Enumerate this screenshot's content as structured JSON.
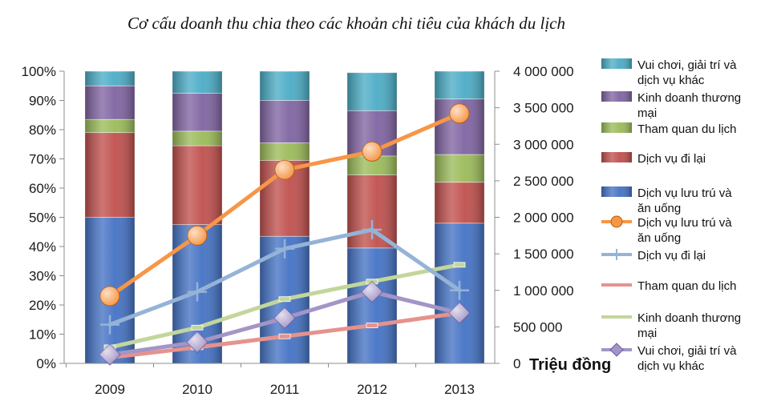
{
  "chart_data": {
    "type": "bar",
    "title": "Cơ cấu doanh thu chia theo các khoản chi tiêu của khách du lịch",
    "categories": [
      "2009",
      "2010",
      "2011",
      "2012",
      "2013"
    ],
    "stacked": true,
    "left_axis": {
      "min": 0,
      "max": 100,
      "step": 10,
      "tick_labels": [
        "0%",
        "10%",
        "20%",
        "30%",
        "40%",
        "50%",
        "60%",
        "70%",
        "80%",
        "90%",
        "100%"
      ]
    },
    "right_axis": {
      "min": 0,
      "max": 4000000,
      "step": 500000,
      "tick_labels": [
        "0",
        "500 000",
        "1 000 000",
        "1 500 000",
        "2 000 000",
        "2 500 000",
        "3 000 000",
        "3 500 000",
        "4 000 000"
      ],
      "unit_label": "Triệu đồng"
    },
    "bar_series": [
      {
        "name": "Dịch vụ lưu trú và ăn uống",
        "values": [
          50,
          47.5,
          43.5,
          39.5,
          48
        ],
        "color": "#4472C4"
      },
      {
        "name": "Dịch vụ đi lại",
        "values": [
          29,
          27,
          26,
          25,
          14
        ],
        "color": "#C0504D"
      },
      {
        "name": "Tham quan du lịch",
        "values": [
          4.5,
          5,
          6,
          6.5,
          9.5
        ],
        "color": "#9BBB59"
      },
      {
        "name": "Kinh doanh thương mại",
        "values": [
          11.5,
          13,
          14.5,
          15.5,
          19
        ],
        "color": "#8064A2"
      },
      {
        "name": "Vui chơi, giải trí và dịch vụ khác",
        "values": [
          5,
          7.5,
          10,
          13,
          9.5
        ],
        "color": "#4BACC6"
      }
    ],
    "line_series": [
      {
        "name": "Dịch vụ lưu trú và ăn uống",
        "values": [
          920000,
          1750000,
          2650000,
          2900000,
          3420000
        ],
        "color": "#F79646",
        "marker": "circle"
      },
      {
        "name": "Dịch vụ đi lại",
        "values": [
          530000,
          980000,
          1570000,
          1830000,
          1000000
        ],
        "color": "#95B3D7",
        "marker": "plus"
      },
      {
        "name": "Tham quan du lịch",
        "values": [
          80000,
          220000,
          370000,
          520000,
          690000
        ],
        "color": "#E6928D",
        "marker": "none"
      },
      {
        "name": "Kinh doanh thương mại",
        "values": [
          220000,
          490000,
          880000,
          1120000,
          1350000
        ],
        "color": "#C3D69B",
        "marker": "none"
      },
      {
        "name": "Vui chơi, giải trí và dịch vụ khác",
        "values": [
          120000,
          290000,
          620000,
          980000,
          690000
        ],
        "color": "#A395C6",
        "marker": "diamond"
      }
    ],
    "legend": {
      "placement": "right",
      "entries": [
        {
          "kind": "bar",
          "series": 4,
          "lines": [
            "Vui chơi, giải trí và",
            "dịch vụ khác"
          ]
        },
        {
          "kind": "bar",
          "series": 3,
          "lines": [
            "Kinh doanh thương",
            "mại"
          ]
        },
        {
          "kind": "bar",
          "series": 2,
          "lines": [
            "Tham quan du lịch"
          ]
        },
        {
          "kind": "bar",
          "series": 1,
          "lines": [
            "Dịch vụ đi lại"
          ]
        },
        {
          "kind": "bar",
          "series": 0,
          "lines": [
            "Dịch vụ lưu trú và",
            "ăn uống"
          ]
        },
        {
          "kind": "line",
          "series": 0,
          "lines": [
            "Dịch vụ lưu trú và",
            "ăn uống"
          ]
        },
        {
          "kind": "line",
          "series": 1,
          "lines": [
            "Dịch vụ đi lại"
          ]
        },
        {
          "kind": "line",
          "series": 2,
          "lines": [
            "Tham quan du lịch"
          ]
        },
        {
          "kind": "line",
          "series": 3,
          "lines": [
            "Kinh doanh thương",
            "mại"
          ]
        },
        {
          "kind": "line",
          "series": 4,
          "lines": [
            "Vui chơi, giải trí và",
            "dịch vụ khác"
          ]
        }
      ]
    },
    "grid": false
  }
}
